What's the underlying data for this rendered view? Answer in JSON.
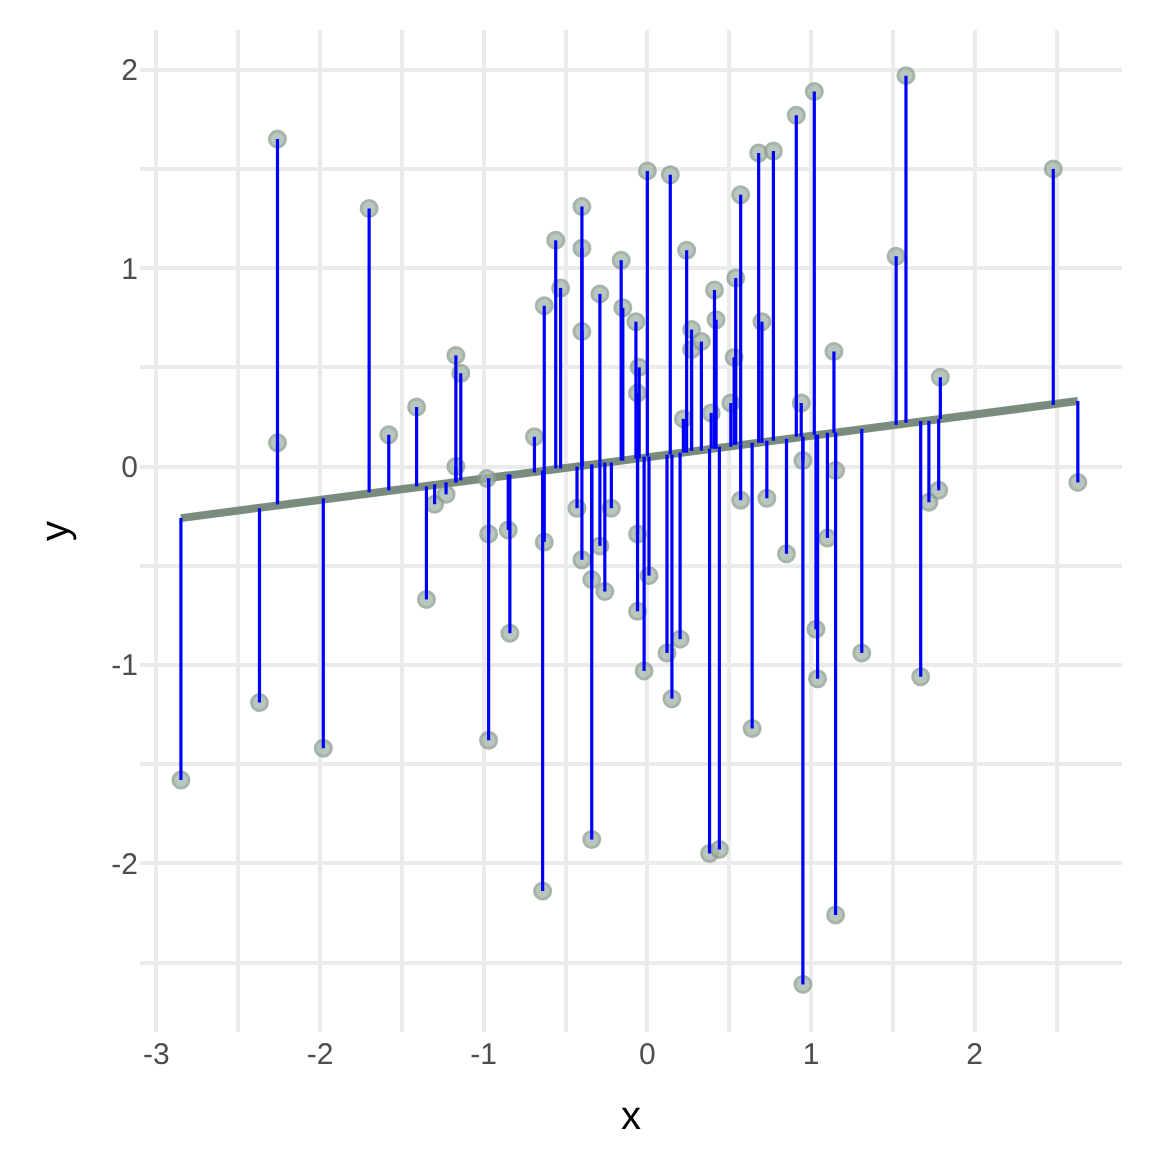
{
  "chart_data": {
    "type": "scatter",
    "xlabel": "x",
    "ylabel": "y",
    "xlim": [
      -3.1,
      2.9
    ],
    "ylim": [
      -2.85,
      2.2
    ],
    "xticks": [
      -3,
      {
        "value": -2.5,
        "label": null
      },
      -2,
      {
        "value": -1.5,
        "label": null
      },
      -1,
      {
        "value": -0.5,
        "label": null
      },
      0,
      {
        "value": 0.5,
        "label": null
      },
      1,
      {
        "value": 1.5,
        "label": null
      },
      2,
      {
        "value": 2.5,
        "label": null
      }
    ],
    "yticks": [
      {
        "value": -2.5,
        "label": null
      },
      -2,
      {
        "value": -1.5,
        "label": null
      },
      -1,
      {
        "value": -0.5,
        "label": null
      },
      0,
      {
        "value": 0.5,
        "label": null
      },
      1,
      {
        "value": 1.5,
        "label": null
      },
      2
    ],
    "grid": true,
    "series": [
      {
        "color": "#a3b5a6",
        "marker": "circle",
        "x": [
          -2.85,
          -2.37,
          -2.26,
          -2.26,
          -1.98,
          -1.7,
          -1.58,
          -1.41,
          -1.35,
          -1.3,
          -1.23,
          -1.17,
          -1.14,
          -1.17,
          -0.98,
          -0.97,
          -0.97,
          -0.85,
          -0.84,
          -0.69,
          -0.64,
          -0.63,
          -0.63,
          -0.56,
          -0.53,
          -0.4,
          -0.4,
          -0.4,
          -0.43,
          -0.4,
          -0.34,
          -0.34,
          -0.29,
          -0.29,
          -0.26,
          -0.22,
          -0.16,
          -0.15,
          -0.07,
          -0.06,
          -0.05,
          -0.06,
          -0.06,
          0.0,
          0.01,
          -0.02,
          0.12,
          0.14,
          0.15,
          0.2,
          0.24,
          0.22,
          0.27,
          0.27,
          0.33,
          0.39,
          0.41,
          0.42,
          0.38,
          0.44,
          0.54,
          0.57,
          0.53,
          0.51,
          0.57,
          0.68,
          0.77,
          0.7,
          0.64,
          0.73,
          0.85,
          0.91,
          1.02,
          0.94,
          0.95,
          1.03,
          1.04,
          0.95,
          1.15,
          1.14,
          1.1,
          1.15,
          1.31,
          1.52,
          1.58,
          1.67,
          1.72,
          1.78,
          1.79,
          2.48,
          2.63
        ],
        "values": [
          -1.58,
          -1.19,
          1.65,
          0.12,
          -1.42,
          1.3,
          0.16,
          0.3,
          -0.67,
          -0.19,
          -0.14,
          0.56,
          0.47,
          0.0,
          -0.06,
          -0.34,
          -1.38,
          -0.32,
          -0.84,
          0.15,
          -2.14,
          -0.38,
          0.81,
          1.14,
          0.9,
          1.31,
          1.1,
          0.68,
          -0.21,
          -0.47,
          -0.57,
          -1.88,
          0.87,
          -0.4,
          -0.63,
          -0.21,
          1.04,
          0.8,
          0.73,
          0.37,
          0.5,
          -0.34,
          -0.73,
          1.49,
          -0.55,
          -1.03,
          -0.94,
          1.47,
          -1.17,
          -0.87,
          1.09,
          0.24,
          0.69,
          0.59,
          0.63,
          0.27,
          0.89,
          0.74,
          -1.95,
          -1.93,
          0.95,
          1.37,
          0.55,
          0.32,
          -0.17,
          1.58,
          1.59,
          0.73,
          -1.32,
          -0.16,
          -0.44,
          1.77,
          1.89,
          0.32,
          0.03,
          -0.82,
          -1.07,
          -2.61,
          -2.26,
          0.58,
          -0.36,
          -0.02,
          -0.94,
          1.06,
          1.97,
          -1.06,
          -0.18,
          -0.12,
          0.45,
          1.5,
          -0.08
        ],
        "errors": [
          [
            -1.58,
            -0.26
          ],
          [
            -1.19,
            -0.21
          ],
          [
            -0.19,
            1.65
          ],
          [
            -0.19,
            0.12
          ],
          [
            -1.42,
            -0.16
          ],
          [
            -0.13,
            1.3
          ],
          [
            -0.12,
            0.16
          ],
          [
            -0.1,
            0.3
          ],
          [
            -0.67,
            -0.1
          ],
          [
            -0.19,
            -0.09
          ],
          [
            -0.14,
            -0.08
          ],
          [
            -0.08,
            0.56
          ],
          [
            -0.07,
            0.47
          ],
          [
            -0.08,
            0.0
          ],
          [
            -0.06,
            -0.06
          ],
          [
            -0.34,
            -0.06
          ],
          [
            -1.38,
            -0.06
          ],
          [
            -0.32,
            -0.04
          ],
          [
            -0.84,
            -0.04
          ],
          [
            -0.03,
            0.15
          ],
          [
            -2.14,
            -0.02
          ],
          [
            -0.38,
            -0.02
          ],
          [
            -0.02,
            0.81
          ],
          [
            -0.01,
            1.14
          ],
          [
            -0.01,
            0.9
          ],
          [
            0.0,
            1.31
          ],
          [
            0.0,
            1.1
          ],
          [
            0.0,
            0.68
          ],
          [
            -0.21,
            0.0
          ],
          [
            -0.47,
            0.0
          ],
          [
            -0.57,
            0.01
          ],
          [
            -1.88,
            0.01
          ],
          [
            0.02,
            0.87
          ],
          [
            -0.4,
            0.02
          ],
          [
            -0.63,
            0.02
          ],
          [
            -0.21,
            0.02
          ],
          [
            0.03,
            1.04
          ],
          [
            0.03,
            0.8
          ],
          [
            0.04,
            0.73
          ],
          [
            0.04,
            0.37
          ],
          [
            0.04,
            0.5
          ],
          [
            -0.34,
            0.04
          ],
          [
            -0.73,
            0.04
          ],
          [
            0.05,
            1.49
          ],
          [
            -0.55,
            0.05
          ],
          [
            -1.03,
            0.05
          ],
          [
            -0.94,
            0.06
          ],
          [
            0.06,
            1.47
          ],
          [
            -1.17,
            0.06
          ],
          [
            -0.87,
            0.07
          ],
          [
            0.07,
            1.09
          ],
          [
            0.07,
            0.24
          ],
          [
            0.08,
            0.69
          ],
          [
            0.08,
            0.59
          ],
          [
            0.08,
            0.63
          ],
          [
            0.09,
            0.27
          ],
          [
            0.09,
            0.89
          ],
          [
            0.09,
            0.74
          ],
          [
            -1.95,
            0.09
          ],
          [
            -1.93,
            0.1
          ],
          [
            0.11,
            0.95
          ],
          [
            0.11,
            1.37
          ],
          [
            0.11,
            0.55
          ],
          [
            0.1,
            0.32
          ],
          [
            -0.17,
            0.11
          ],
          [
            0.12,
            1.58
          ],
          [
            0.13,
            1.59
          ],
          [
            0.12,
            0.73
          ],
          [
            -1.32,
            0.12
          ],
          [
            -0.16,
            0.13
          ],
          [
            -0.44,
            0.14
          ],
          [
            0.15,
            1.77
          ],
          [
            0.16,
            1.89
          ],
          [
            0.15,
            0.32
          ],
          [
            0.03,
            0.15
          ],
          [
            -0.82,
            0.16
          ],
          [
            -1.07,
            0.16
          ],
          [
            -2.61,
            0.15
          ],
          [
            -2.26,
            0.17
          ],
          [
            0.17,
            0.58
          ],
          [
            -0.36,
            0.17
          ],
          [
            -0.02,
            0.17
          ],
          [
            -0.94,
            0.19
          ],
          [
            0.21,
            1.06
          ],
          [
            0.22,
            1.97
          ],
          [
            -1.06,
            0.23
          ],
          [
            -0.18,
            0.23
          ],
          [
            -0.12,
            0.24
          ],
          [
            0.24,
            0.45
          ],
          [
            0.31,
            1.5
          ],
          [
            -0.08,
            0.33
          ]
        ]
      },
      {
        "type": "line",
        "color": "#7a8c7e",
        "line_style": "solid",
        "marker": "none",
        "x": [
          -2.85,
          2.63
        ],
        "values": [
          -0.26,
          0.33
        ]
      }
    ]
  }
}
